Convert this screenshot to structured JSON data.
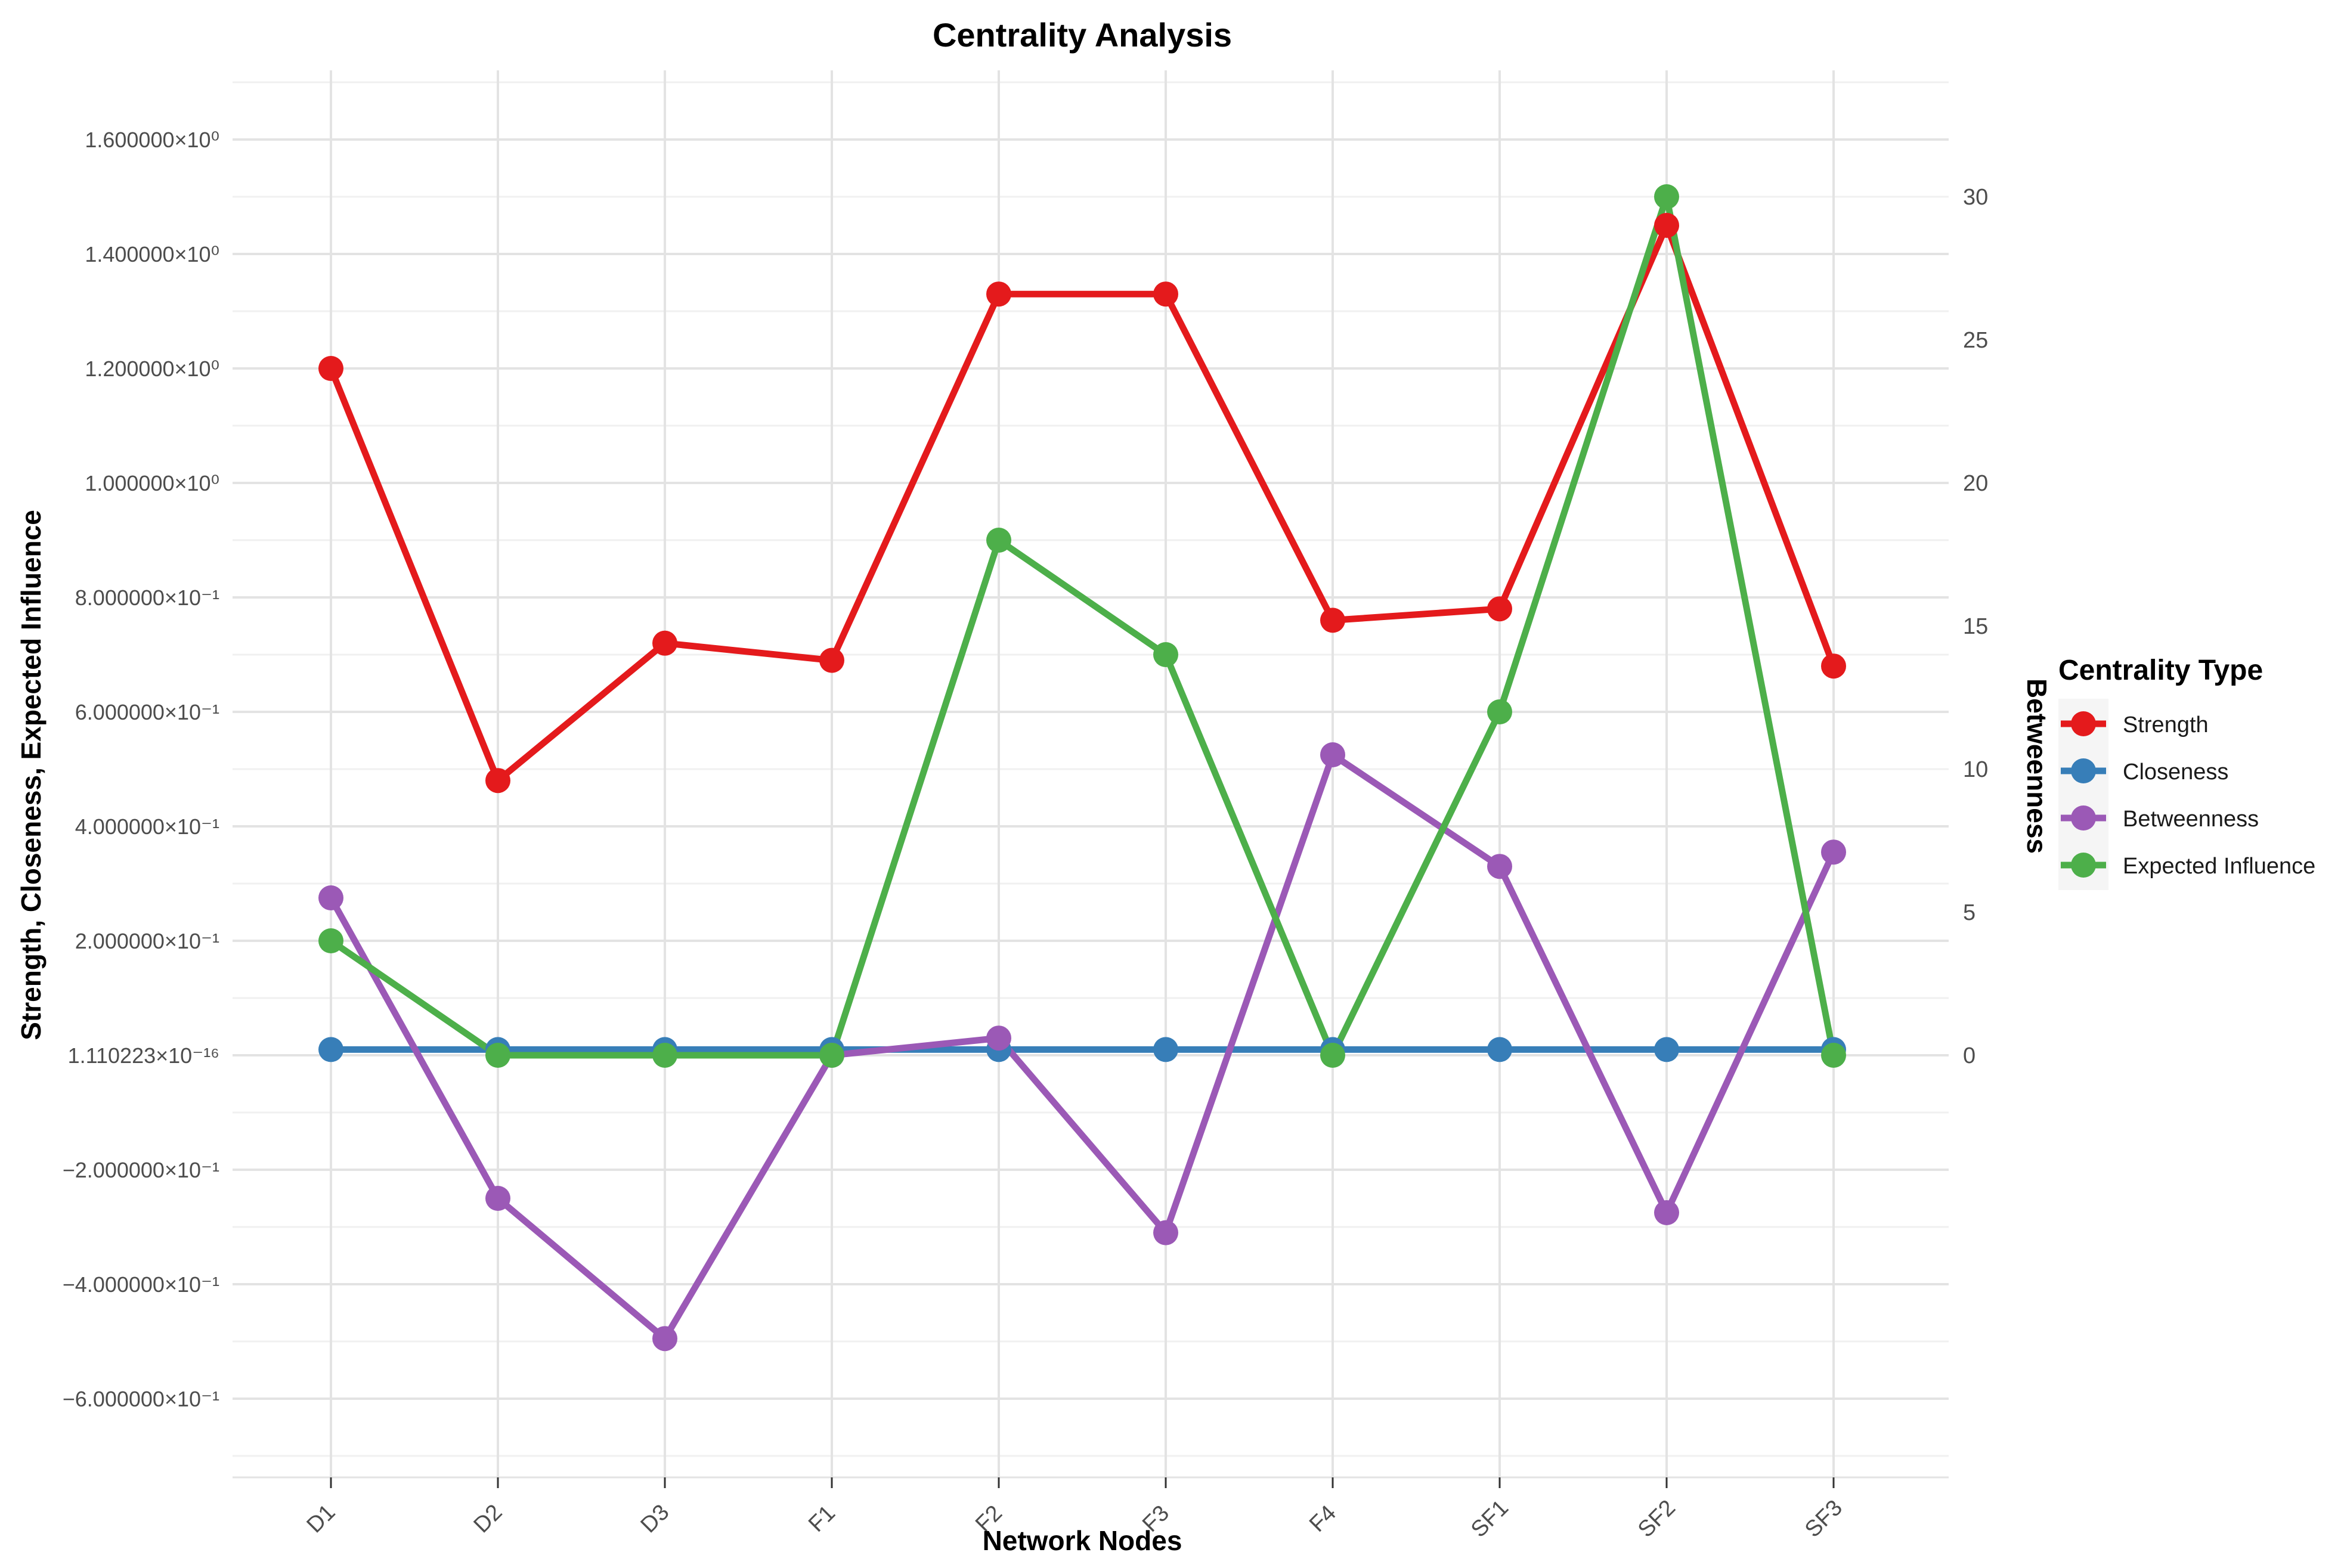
{
  "chart_data": {
    "type": "line",
    "title": "Centrality Analysis",
    "xlabel": "Network Nodes",
    "ylabel_left": "Strength, Closeness, Expected Influence",
    "ylabel_right": "Betweenness",
    "legend_title": "Centrality Type",
    "legend_position": "right",
    "grid": "on",
    "categories": [
      "D1",
      "D2",
      "D3",
      "F1",
      "F2",
      "F3",
      "F4",
      "SF1",
      "SF2",
      "SF3"
    ],
    "series": [
      {
        "name": "Strength",
        "color": "#E41A1C",
        "axis": "left",
        "values": [
          1.2,
          0.48,
          0.72,
          0.69,
          1.33,
          1.33,
          0.76,
          0.78,
          1.45,
          0.68
        ]
      },
      {
        "name": "Closeness",
        "color": "#377EB8",
        "axis": "left",
        "values": [
          0.01,
          0.01,
          0.01,
          0.01,
          0.01,
          0.01,
          0.01,
          0.01,
          0.01,
          0.01
        ]
      },
      {
        "name": "Betweenness",
        "color": "#9B59B6",
        "axis": "right",
        "values": [
          5.5,
          -5.0,
          -9.9,
          0.0,
          0.6,
          -6.2,
          10.5,
          6.6,
          -5.5,
          7.1
        ]
      },
      {
        "name": "Expected Influence",
        "color": "#4DAF4A",
        "axis": "left",
        "values": [
          0.2,
          0.0,
          0.0,
          0.0,
          0.9,
          0.7,
          0.0,
          0.6,
          1.5,
          0.0
        ]
      }
    ],
    "left_axis": {
      "ticks": [
        {
          "label": "1.600000×10⁰",
          "value": 1.6
        },
        {
          "label": "1.400000×10⁰",
          "value": 1.4
        },
        {
          "label": "1.200000×10⁰",
          "value": 1.2
        },
        {
          "label": "1.000000×10⁰",
          "value": 1.0
        },
        {
          "label": "8.000000×10⁻¹",
          "value": 0.8
        },
        {
          "label": "6.000000×10⁻¹",
          "value": 0.6
        },
        {
          "label": "4.000000×10⁻¹",
          "value": 0.4
        },
        {
          "label": "2.000000×10⁻¹",
          "value": 0.2
        },
        {
          "label": "1.110223×10⁻¹⁶",
          "value": 0.0
        },
        {
          "label": "−2.000000×10⁻¹",
          "value": -0.2
        },
        {
          "label": "−4.000000×10⁻¹",
          "value": -0.4
        },
        {
          "label": "−6.000000×10⁻¹",
          "value": -0.6
        }
      ],
      "ylim": [
        -0.74,
        1.72
      ]
    },
    "right_axis": {
      "ticks": [
        {
          "label": "30",
          "value": 30
        },
        {
          "label": "25",
          "value": 25
        },
        {
          "label": "20",
          "value": 20
        },
        {
          "label": "15",
          "value": 15
        },
        {
          "label": "10",
          "value": 10
        },
        {
          "label": "5",
          "value": 5
        },
        {
          "label": "0",
          "value": 0
        }
      ],
      "scale_right_per_left_unit": 20,
      "ylim": [
        -14.8,
        34.4
      ]
    },
    "colors": {
      "grid_major": "#E3E3E3",
      "grid_minor": "#F0F0F0",
      "tick_text": "#4D4D4D",
      "axis_text": "#000000",
      "legend_key_bg": "#F5F5F5",
      "tick_mark": "#333333"
    }
  }
}
